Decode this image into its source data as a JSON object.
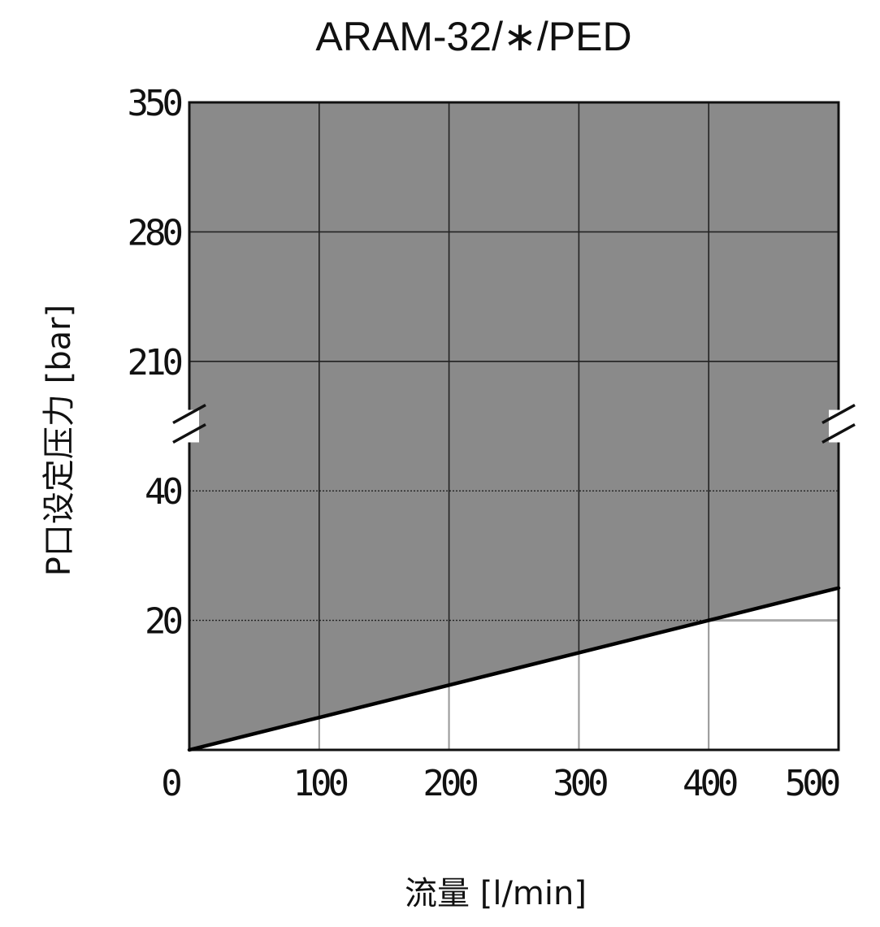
{
  "chart_data": {
    "type": "area",
    "title": "ARAM-32/∗/PED",
    "xlabel": "流量 [l/min]",
    "ylabel": "P口设定压力 [bar]",
    "x_ticks": [
      0,
      100,
      200,
      300,
      400,
      500
    ],
    "y_ticks": [
      20,
      40,
      210,
      280,
      350
    ],
    "xlim": [
      0,
      500
    ],
    "ylim_lower_segment": [
      0,
      40
    ],
    "ylim_upper_segment": [
      210,
      350
    ],
    "axis_break": "between 40 and 210",
    "grid": true,
    "series": [
      {
        "x": [
          0,
          100,
          200,
          300,
          400,
          500
        ],
        "y": [
          0,
          5,
          10,
          15,
          20,
          25
        ]
      }
    ],
    "fill_region": "area above the line is shaded (usable region)",
    "reference_line": {
      "y": 20,
      "x_from": 400,
      "x_to": 500
    },
    "colors": {
      "fill": "#8a8a8a",
      "grid": "#222222",
      "line": "#000000",
      "reference": "#aaaaaa"
    }
  }
}
